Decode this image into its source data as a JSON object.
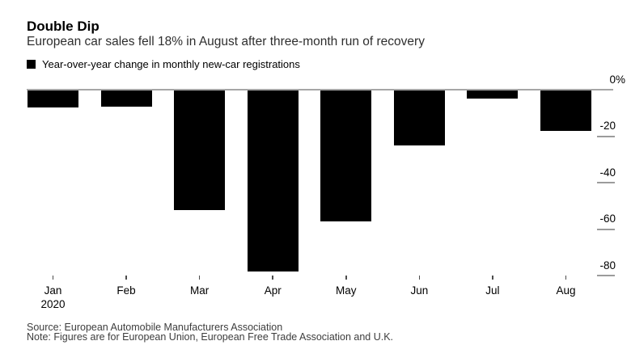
{
  "header": {
    "title": "Double Dip",
    "subtitle": "European car sales fell 18% in August after three-month run of recovery"
  },
  "legend": {
    "swatch_color": "#000000",
    "label": "Year-over-year change in monthly new-car registrations"
  },
  "chart_data": {
    "type": "bar",
    "title": "Double Dip",
    "subtitle": "European car sales fell 18% in August after three-month run of recovery",
    "series_name": "Year-over-year change in monthly new-car registrations",
    "categories": [
      "Jan",
      "Feb",
      "Mar",
      "Apr",
      "May",
      "Jun",
      "Jul",
      "Aug"
    ],
    "x_sublabel": "2020",
    "values": [
      -7.5,
      -7.2,
      -51.8,
      -78.3,
      -56.8,
      -24.1,
      -3.7,
      -17.6
    ],
    "unit": "%",
    "xlabel": "",
    "ylabel": "",
    "ylim": [
      -80,
      0
    ],
    "y_ticks": [
      0,
      -20,
      -40,
      -60,
      -80
    ],
    "y_tick_labels": [
      "0%",
      "-20",
      "-40",
      "-60",
      "-80"
    ],
    "y_axis_side": "right",
    "grid": false,
    "legend_position": "top-left",
    "bar_color": "#000000",
    "zero_line_color": "#a6a6a6",
    "tick_color": "#9b9b9b"
  },
  "footer": {
    "source": "Source: European Automobile Manufacturers Association",
    "note": "Note: Figures are for European Union, European Free Trade Association and U.K."
  }
}
